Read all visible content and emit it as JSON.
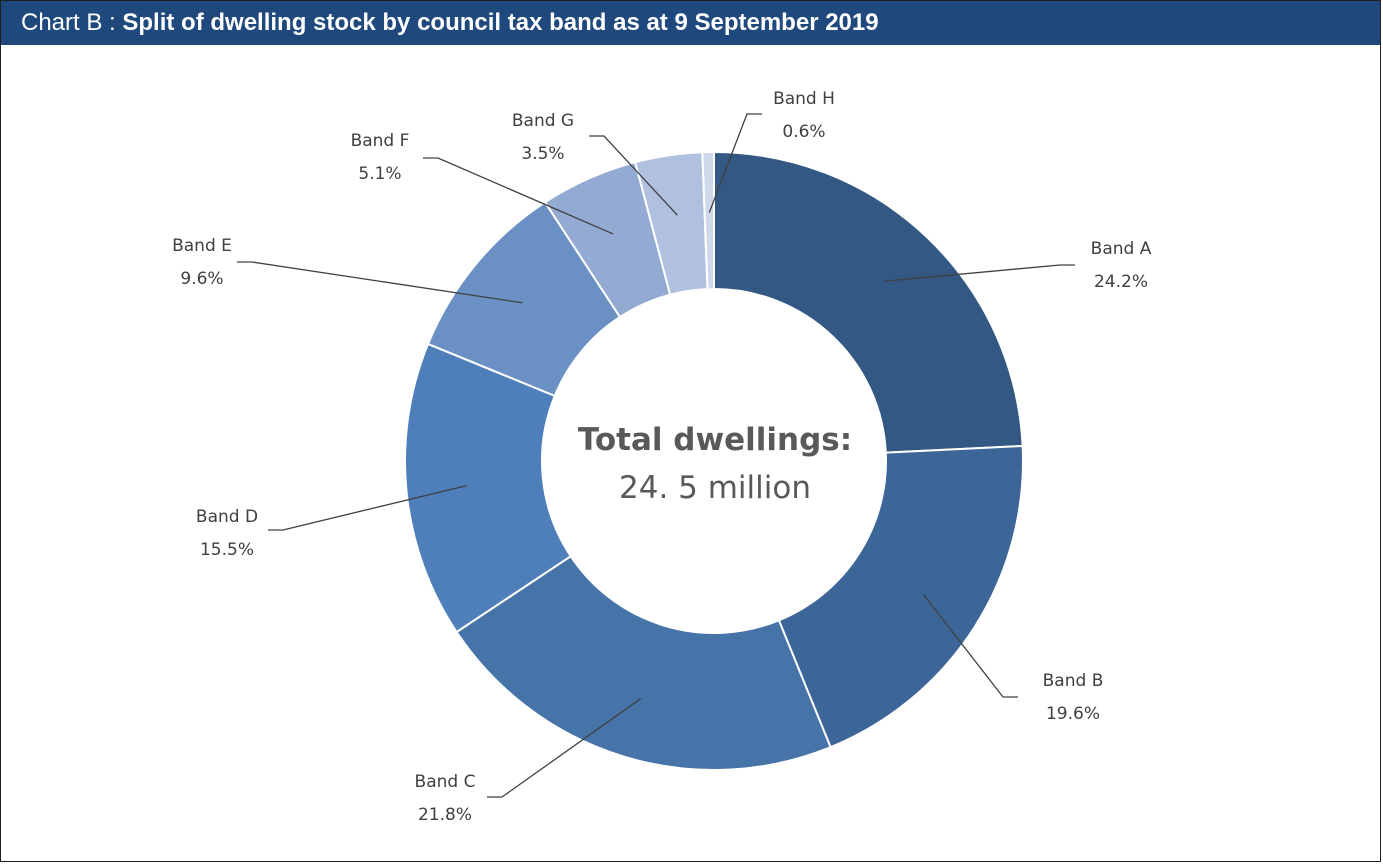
{
  "header": {
    "prefix": "Chart B : ",
    "title": "Split of dwelling stock by council tax band as at 9 September 2019"
  },
  "chart_data": {
    "type": "pie",
    "variant": "donut",
    "center_title": "Total dwellings:",
    "center_value": "24. 5 million",
    "slices": [
      {
        "label": "Band A",
        "value": 24.2,
        "value_label": "24.2%",
        "color": "#335884"
      },
      {
        "label": "Band B",
        "value": 19.6,
        "value_label": "19.6%",
        "color": "#3c6598"
      },
      {
        "label": "Band C",
        "value": 21.8,
        "value_label": "21.8%",
        "color": "#4673a8"
      },
      {
        "label": "Band D",
        "value": 15.5,
        "value_label": "15.5%",
        "color": "#4e7fba"
      },
      {
        "label": "Band E",
        "value": 9.6,
        "value_label": "9.6%",
        "color": "#6b91c4"
      },
      {
        "label": "Band F",
        "value": 5.1,
        "value_label": "5.1%",
        "color": "#93aad2"
      },
      {
        "label": "Band G",
        "value": 3.5,
        "value_label": "3.5%",
        "color": "#b0c1df"
      },
      {
        "label": "Band H",
        "value": 0.6,
        "value_label": "0.6%",
        "color": "#cfd9ec"
      }
    ]
  }
}
